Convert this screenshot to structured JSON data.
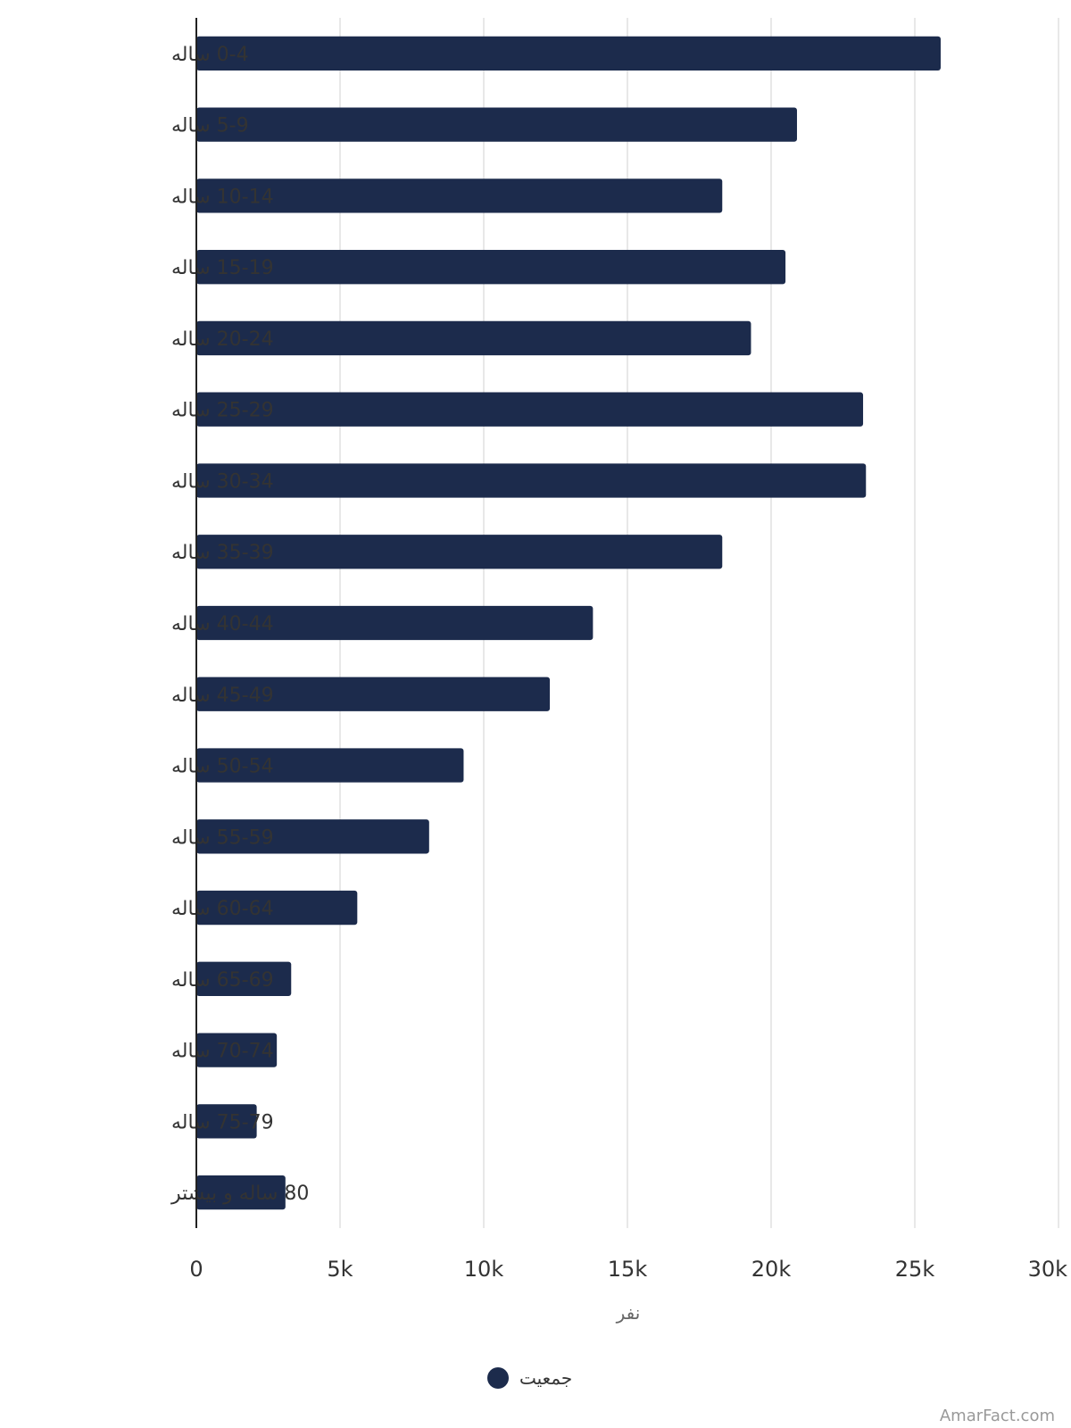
{
  "chart_data": {
    "type": "bar",
    "orientation": "horizontal",
    "categories": [
      "0-4 ساله",
      "5-9 ساله",
      "10-14 ساله",
      "15-19 ساله",
      "20-24 ساله",
      "25-29 ساله",
      "30-34 ساله",
      "35-39 ساله",
      "40-44 ساله",
      "45-49 ساله",
      "50-54 ساله",
      "55-59 ساله",
      "60-64 ساله",
      "65-69 ساله",
      "70-74 ساله",
      "75-79 ساله",
      "80 ساله و بیشتر"
    ],
    "series": [
      {
        "name": "جمعیت",
        "color": "#1c2b4c",
        "values": [
          25900,
          20900,
          18300,
          20500,
          19300,
          23200,
          23300,
          18300,
          13800,
          12300,
          9300,
          8100,
          5600,
          3300,
          2800,
          2100,
          3100
        ]
      }
    ],
    "xlabel": "نفر",
    "ylabel": "",
    "xlim": [
      0,
      30000
    ],
    "x_ticks": [
      {
        "value": 0,
        "label": "0"
      },
      {
        "value": 5000,
        "label": "5k"
      },
      {
        "value": 10000,
        "label": "10k"
      },
      {
        "value": 15000,
        "label": "15k"
      },
      {
        "value": 20000,
        "label": "20k"
      },
      {
        "value": 25000,
        "label": "25k"
      },
      {
        "value": 30000,
        "label": "30k"
      }
    ],
    "grid": true,
    "legend": "bottom-center"
  },
  "credit": "AmarFact.com",
  "colors": {
    "bar": "#1c2b4c",
    "grid": "#e0e0e0",
    "axis": "#222222"
  }
}
